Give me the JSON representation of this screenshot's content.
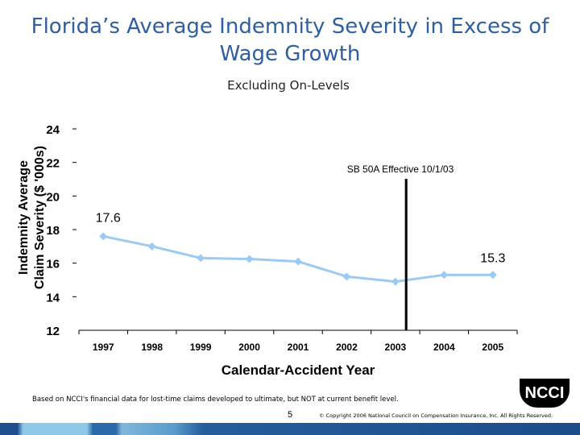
{
  "chart_data": {
    "type": "line",
    "title": "Florida’s Average Indemnity Severity in Excess of Wage Growth",
    "subtitle": "Excluding On-Levels",
    "xlabel": "Calendar-Accident Year",
    "ylabel": [
      "Indemnity Average",
      "Claim Severity ($ '000s)"
    ],
    "categories": [
      "1997",
      "1998",
      "1999",
      "2000",
      "2001",
      "2002",
      "2003",
      "2004",
      "2005"
    ],
    "values": [
      17.6,
      17.0,
      16.3,
      16.25,
      16.1,
      15.2,
      14.9,
      15.3,
      15.3
    ],
    "ylim": [
      12,
      24
    ],
    "yticks": [
      "12",
      "14",
      "16",
      "18",
      "20",
      "22",
      "24"
    ],
    "data_labels": [
      {
        "index": 0,
        "text": "17.6"
      },
      {
        "index": 8,
        "text": "15.3"
      }
    ],
    "annotation": {
      "text": "SB 50A Effective 10/1/03",
      "between": [
        "2003",
        "2004"
      ]
    },
    "series_color": "#9ccaf2",
    "grid": false
  },
  "footer": {
    "note": "Based on NCCI's financial data for lost-time claims developed to ultimate, but NOT at current benefit level.",
    "page": "5",
    "copyright": "© Copyright 2006 National Council on Compensation Insurance, Inc. All Rights Reserved.",
    "logo": "NCCI"
  }
}
